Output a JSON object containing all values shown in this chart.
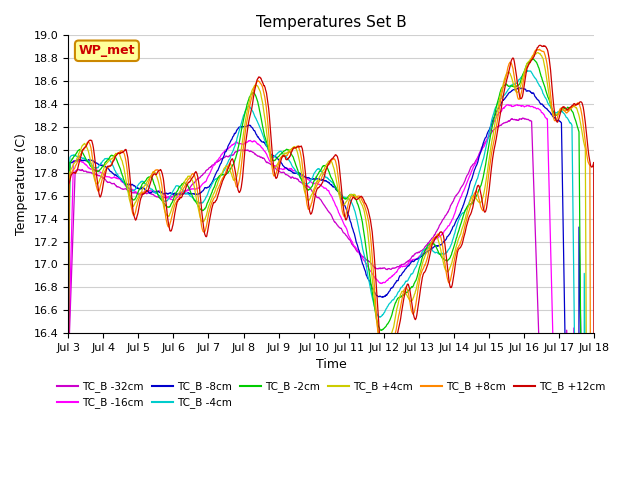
{
  "title": "Temperatures Set B",
  "xlabel": "Time",
  "ylabel": "Temperature (C)",
  "ylim": [
    16.4,
    19.0
  ],
  "yticks": [
    16.4,
    16.6,
    16.8,
    17.0,
    17.2,
    17.4,
    17.6,
    17.8,
    18.0,
    18.2,
    18.4,
    18.6,
    18.8,
    19.0
  ],
  "x_start": 3,
  "x_end": 18,
  "n_points": 1500,
  "series": [
    {
      "label": "TC_B -32cm",
      "color": "#cc00cc",
      "depth": 7
    },
    {
      "label": "TC_B -16cm",
      "color": "#ff00ff",
      "depth": 6
    },
    {
      "label": "TC_B -8cm",
      "color": "#0000cc",
      "depth": 5
    },
    {
      "label": "TC_B -4cm",
      "color": "#00cccc",
      "depth": 4
    },
    {
      "label": "TC_B -2cm",
      "color": "#00cc00",
      "depth": 3
    },
    {
      "label": "TC_B +4cm",
      "color": "#cccc00",
      "depth": 2
    },
    {
      "label": "TC_B +8cm",
      "color": "#ff8800",
      "depth": 1
    },
    {
      "label": "TC_B +12cm",
      "color": "#cc0000",
      "depth": 0
    }
  ],
  "legend_label": "WP_met",
  "legend_bg": "#ffff99",
  "legend_border": "#cc8800",
  "bg_color": "#ffffff",
  "grid_color": "#d0d0d0",
  "xtick_labels": [
    "Jul 3",
    "Jul 4",
    "Jul 5",
    "Jul 6",
    "Jul 7",
    "Jul 8",
    "Jul 9",
    "Jul 10",
    "Jul 11",
    "Jul 12",
    "Jul 13",
    "Jul 14",
    "Jul 15",
    "Jul 16",
    "Jul 17",
    "Jul 18"
  ],
  "xtick_positions": [
    3,
    4,
    5,
    6,
    7,
    8,
    9,
    10,
    11,
    12,
    13,
    14,
    15,
    16,
    17,
    18
  ]
}
